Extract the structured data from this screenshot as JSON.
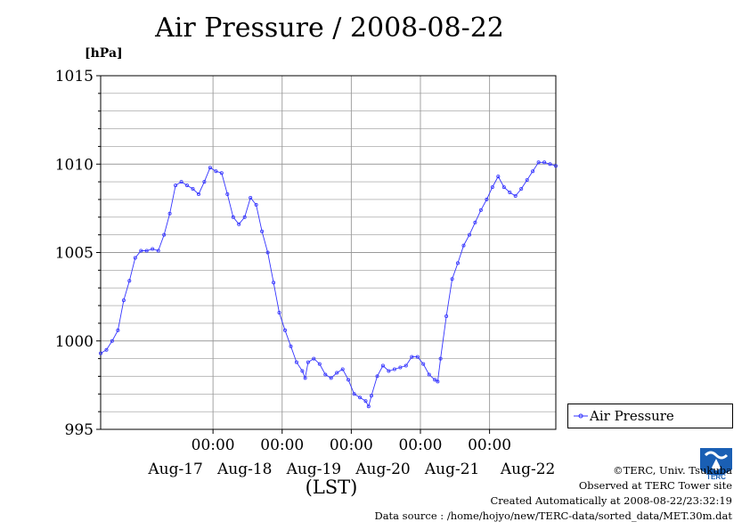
{
  "header": {
    "title": "Air Pressure / 2008-08-22"
  },
  "legend": {
    "label": "Air Pressure"
  },
  "credits": {
    "line1": "©TERC, Univ. Tsukuba",
    "line2": "Observed at TERC Tower site",
    "line3": "Created Automatically at 2008-08-22/23:32:19",
    "line4": "Data source : /home/hojyo/new/TERC-data/sorted_data/MET.30m.dat"
  },
  "logo": {
    "icon": "terc-logo-icon",
    "text": "TERC"
  },
  "colors": {
    "series": "#3333ff",
    "grid": "#999999",
    "axis": "#000000"
  },
  "chart_data": {
    "type": "line",
    "ylabel": "[hPa]",
    "xlabel": "(LST)",
    "ylim": [
      995,
      1015
    ],
    "yticks": [
      995,
      1000,
      1005,
      1010,
      1015
    ],
    "y_tick_labels": [
      "995",
      "1000",
      "1005",
      "1010",
      "1015"
    ],
    "xlim": [
      "2008-08-16T09:00",
      "2008-08-22T23:00"
    ],
    "x_ticks": [
      {
        "at": "2008-08-18T00:00",
        "time": "00:00",
        "date": "Aug-17"
      },
      {
        "at": "2008-08-19T00:00",
        "time": "00:00",
        "date": "Aug-18"
      },
      {
        "at": "2008-08-20T00:00",
        "time": "00:00",
        "date": "Aug-19"
      },
      {
        "at": "2008-08-21T00:00",
        "time": "00:00",
        "date": "Aug-20"
      },
      {
        "at": "2008-08-22T00:00",
        "time": "00:00",
        "date": "Aug-21"
      },
      {
        "at": "",
        "time": "",
        "date": "Aug-22"
      }
    ],
    "grid": true,
    "legend_position": "right-bottom",
    "series": [
      {
        "name": "Air Pressure",
        "points": [
          [
            "2008-08-16T09:00",
            999.3
          ],
          [
            "2008-08-16T11:00",
            999.5
          ],
          [
            "2008-08-16T13:00",
            1000.0
          ],
          [
            "2008-08-16T15:00",
            1000.6
          ],
          [
            "2008-08-16T17:00",
            1002.3
          ],
          [
            "2008-08-16T19:00",
            1003.4
          ],
          [
            "2008-08-16T21:00",
            1004.7
          ],
          [
            "2008-08-16T23:00",
            1005.1
          ],
          [
            "2008-08-17T01:00",
            1005.1
          ],
          [
            "2008-08-17T03:00",
            1005.2
          ],
          [
            "2008-08-17T05:00",
            1005.1
          ],
          [
            "2008-08-17T07:00",
            1006.0
          ],
          [
            "2008-08-17T09:00",
            1007.2
          ],
          [
            "2008-08-17T11:00",
            1008.8
          ],
          [
            "2008-08-17T13:00",
            1009.0
          ],
          [
            "2008-08-17T15:00",
            1008.8
          ],
          [
            "2008-08-17T17:00",
            1008.6
          ],
          [
            "2008-08-17T19:00",
            1008.3
          ],
          [
            "2008-08-17T21:00",
            1009.0
          ],
          [
            "2008-08-17T23:00",
            1009.8
          ],
          [
            "2008-08-18T01:00",
            1009.6
          ],
          [
            "2008-08-18T03:00",
            1009.5
          ],
          [
            "2008-08-18T05:00",
            1008.3
          ],
          [
            "2008-08-18T07:00",
            1007.0
          ],
          [
            "2008-08-18T09:00",
            1006.6
          ],
          [
            "2008-08-18T11:00",
            1007.0
          ],
          [
            "2008-08-18T13:00",
            1008.1
          ],
          [
            "2008-08-18T15:00",
            1007.7
          ],
          [
            "2008-08-18T17:00",
            1006.2
          ],
          [
            "2008-08-18T19:00",
            1005.0
          ],
          [
            "2008-08-18T21:00",
            1003.3
          ],
          [
            "2008-08-18T23:00",
            1001.6
          ],
          [
            "2008-08-19T01:00",
            1000.6
          ],
          [
            "2008-08-19T03:00",
            999.7
          ],
          [
            "2008-08-19T05:00",
            998.8
          ],
          [
            "2008-08-19T07:00",
            998.3
          ],
          [
            "2008-08-19T08:00",
            997.9
          ],
          [
            "2008-08-19T09:00",
            998.8
          ],
          [
            "2008-08-19T11:00",
            999.0
          ],
          [
            "2008-08-19T13:00",
            998.7
          ],
          [
            "2008-08-19T15:00",
            998.1
          ],
          [
            "2008-08-19T17:00",
            997.9
          ],
          [
            "2008-08-19T19:00",
            998.2
          ],
          [
            "2008-08-19T21:00",
            998.4
          ],
          [
            "2008-08-19T23:00",
            997.8
          ],
          [
            "2008-08-20T01:00",
            997.0
          ],
          [
            "2008-08-20T03:00",
            996.8
          ],
          [
            "2008-08-20T05:00",
            996.6
          ],
          [
            "2008-08-20T06:00",
            996.3
          ],
          [
            "2008-08-20T07:00",
            996.9
          ],
          [
            "2008-08-20T09:00",
            998.0
          ],
          [
            "2008-08-20T11:00",
            998.6
          ],
          [
            "2008-08-20T13:00",
            998.3
          ],
          [
            "2008-08-20T15:00",
            998.4
          ],
          [
            "2008-08-20T17:00",
            998.5
          ],
          [
            "2008-08-20T19:00",
            998.6
          ],
          [
            "2008-08-20T21:00",
            999.1
          ],
          [
            "2008-08-20T23:00",
            999.1
          ],
          [
            "2008-08-21T01:00",
            998.7
          ],
          [
            "2008-08-21T03:00",
            998.1
          ],
          [
            "2008-08-21T05:00",
            997.8
          ],
          [
            "2008-08-21T06:00",
            997.7
          ],
          [
            "2008-08-21T07:00",
            999.0
          ],
          [
            "2008-08-21T09:00",
            1001.4
          ],
          [
            "2008-08-21T11:00",
            1003.5
          ],
          [
            "2008-08-21T13:00",
            1004.4
          ],
          [
            "2008-08-21T15:00",
            1005.4
          ],
          [
            "2008-08-21T17:00",
            1006.0
          ],
          [
            "2008-08-21T19:00",
            1006.7
          ],
          [
            "2008-08-21T21:00",
            1007.4
          ],
          [
            "2008-08-21T23:00",
            1008.0
          ],
          [
            "2008-08-22T01:00",
            1008.7
          ],
          [
            "2008-08-22T03:00",
            1009.3
          ],
          [
            "2008-08-22T05:00",
            1008.7
          ],
          [
            "2008-08-22T07:00",
            1008.4
          ],
          [
            "2008-08-22T09:00",
            1008.2
          ],
          [
            "2008-08-22T11:00",
            1008.6
          ],
          [
            "2008-08-22T13:00",
            1009.1
          ],
          [
            "2008-08-22T15:00",
            1009.6
          ],
          [
            "2008-08-22T17:00",
            1010.1
          ],
          [
            "2008-08-22T19:00",
            1010.1
          ],
          [
            "2008-08-22T21:00",
            1010.0
          ],
          [
            "2008-08-22T23:00",
            1009.9
          ]
        ]
      }
    ]
  }
}
